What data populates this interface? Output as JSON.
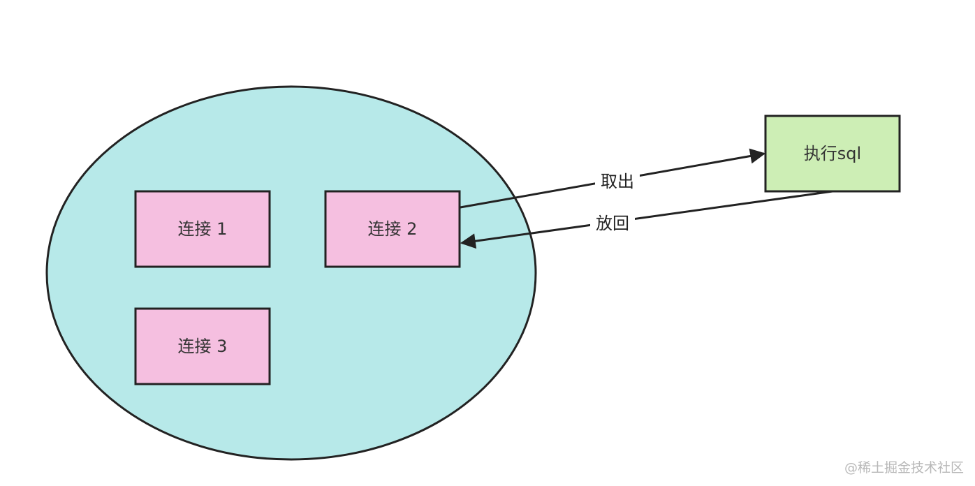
{
  "colors": {
    "pool_fill": "#b7e9e9",
    "connection_fill": "#f5bfe0",
    "execute_fill": "#cdeeb5",
    "stroke": "#222222"
  },
  "nodes": {
    "connection_1": "连接 1",
    "connection_2": "连接 2",
    "connection_3": "连接 3",
    "execute_sql": "执行sql"
  },
  "edges": {
    "take_out": "取出",
    "put_back": "放回"
  },
  "watermark": "@稀土掘金技术社区"
}
